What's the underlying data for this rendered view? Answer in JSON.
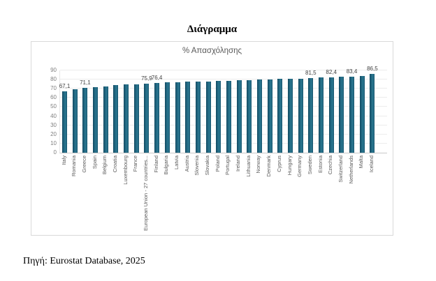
{
  "page": {
    "title": "Διάγραμμα",
    "source": "Πηγή: Eurostat Database, 2025"
  },
  "chart_data": {
    "type": "bar",
    "title": "% Απασχόλησης",
    "xlabel": "",
    "ylabel": "",
    "ylim": [
      0,
      90
    ],
    "ytick_step": 10,
    "grid": true,
    "legend_position": "none",
    "categories": [
      "Italy",
      "Romania",
      "Greece",
      "Spain",
      "Belgium",
      "Croatia",
      "Luxembourg",
      "France",
      "European Union - 27 countries...",
      "Finland",
      "Bulgaria",
      "Latvia",
      "Austria",
      "Slovenia",
      "Slovakia",
      "Poland",
      "Portugal",
      "Ireland",
      "Lithuania",
      "Norway",
      "Denmark",
      "Cyprus",
      "Hungary",
      "Germany",
      "Sweden",
      "Estonia",
      "Czechia",
      "Switzerland",
      "Netherlands",
      "Malta",
      "Iceland"
    ],
    "values": [
      67.1,
      69.5,
      71.1,
      71.4,
      72.4,
      74.0,
      74.6,
      75.1,
      75.9,
      76.4,
      76.9,
      77.1,
      77.6,
      78.0,
      78.2,
      78.5,
      78.8,
      79.4,
      79.6,
      80.1,
      80.4,
      80.8,
      81.0,
      81.2,
      81.5,
      82.1,
      82.4,
      83.0,
      83.4,
      84.0,
      86.5
    ],
    "bar_labels": [
      "67,1",
      "",
      "71,1",
      "",
      "",
      "",
      "",
      "",
      "75,9",
      "76,4",
      "",
      "",
      "",
      "",
      "",
      "",
      "",
      "",
      "",
      "",
      "",
      "",
      "",
      "",
      "81,5",
      "",
      "82,4",
      "",
      "83,4",
      "",
      "86,5"
    ],
    "colors": {
      "bar": "#1d617b",
      "bar_edge_dark": "#10475d",
      "bar_edge_light": "#2a768f",
      "grid": "#ececec",
      "ytick_text": "#7f7f7f",
      "xtick_text": "#595959",
      "data_label_text": "#404040",
      "box_border": "#d9d9d9"
    }
  }
}
